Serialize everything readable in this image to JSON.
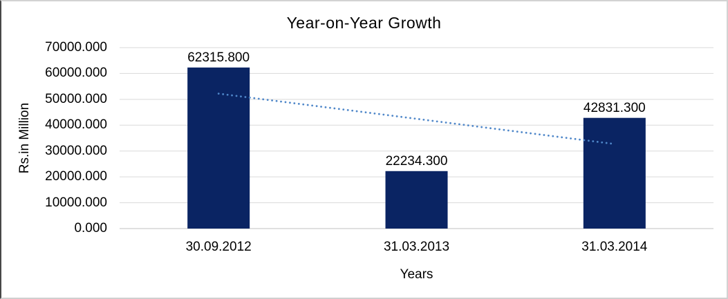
{
  "frame": {
    "background": "#ffffff",
    "border_left_color": "#474747",
    "border_other_color": "#d2d2d2"
  },
  "chart_data": {
    "type": "bar",
    "title": "Year-on-Year Growth",
    "categories": [
      "30.09.2012",
      "31.03.2013",
      "31.03.2014"
    ],
    "values": [
      62315.8,
      22234.3,
      42831.3
    ],
    "value_labels": [
      "62315.800",
      "22234.300",
      "42831.300"
    ],
    "xlabel": "Years",
    "ylabel": "Rs.in Million",
    "ylim": [
      0,
      70000
    ],
    "ytick_step": 10000,
    "ytick_labels": [
      "70000.000",
      "60000.000",
      "50000.000",
      "40000.000",
      "30000.000",
      "20000.000",
      "10000.000",
      "0.000"
    ],
    "grid": true,
    "legend": "none",
    "bar_color": "#0a2463",
    "gridline_color": "#d9d9d9",
    "axis_line_color": "#c2c2c2",
    "text_color": "#000000",
    "trendline": {
      "type": "linear",
      "style": "dotted",
      "color": "#4f87c9",
      "start_value": 52202.7,
      "end_value": 32718.2
    }
  }
}
